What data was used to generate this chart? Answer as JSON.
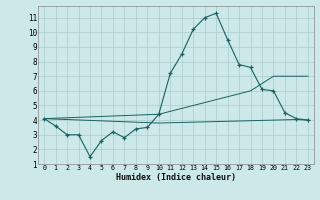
{
  "xlabel": "Humidex (Indice chaleur)",
  "bg_color": "#cce8e8",
  "grid_color": "#aacccc",
  "line_color": "#1a6060",
  "x_data": [
    0,
    1,
    2,
    3,
    4,
    5,
    6,
    7,
    8,
    9,
    10,
    11,
    12,
    13,
    14,
    15,
    16,
    17,
    18,
    19,
    20,
    21,
    22,
    23
  ],
  "y_main": [
    4.1,
    3.6,
    3.0,
    3.0,
    1.5,
    2.6,
    3.2,
    2.8,
    3.4,
    3.5,
    4.4,
    7.2,
    8.5,
    10.2,
    11.0,
    11.3,
    9.5,
    7.8,
    7.6,
    6.1,
    6.0,
    4.5,
    4.1,
    4.0
  ],
  "y_line1": [
    4.1,
    4.13,
    4.16,
    4.19,
    4.22,
    4.25,
    4.28,
    4.31,
    4.34,
    4.37,
    4.4,
    4.6,
    4.8,
    5.0,
    5.2,
    5.4,
    5.6,
    5.8,
    6.0,
    6.5,
    7.0,
    7.0,
    7.0,
    7.0
  ],
  "y_line2": [
    4.1,
    4.07,
    4.04,
    4.01,
    3.98,
    3.95,
    3.92,
    3.89,
    3.86,
    3.83,
    3.8,
    3.82,
    3.84,
    3.86,
    3.88,
    3.9,
    3.92,
    3.94,
    3.96,
    3.98,
    4.0,
    4.02,
    4.04,
    4.0
  ],
  "ylim": [
    1,
    11.8
  ],
  "xlim": [
    -0.5,
    23.5
  ],
  "yticks": [
    1,
    2,
    3,
    4,
    5,
    6,
    7,
    8,
    9,
    10,
    11
  ],
  "xticks": [
    0,
    1,
    2,
    3,
    4,
    5,
    6,
    7,
    8,
    9,
    10,
    11,
    12,
    13,
    14,
    15,
    16,
    17,
    18,
    19,
    20,
    21,
    22,
    23
  ]
}
